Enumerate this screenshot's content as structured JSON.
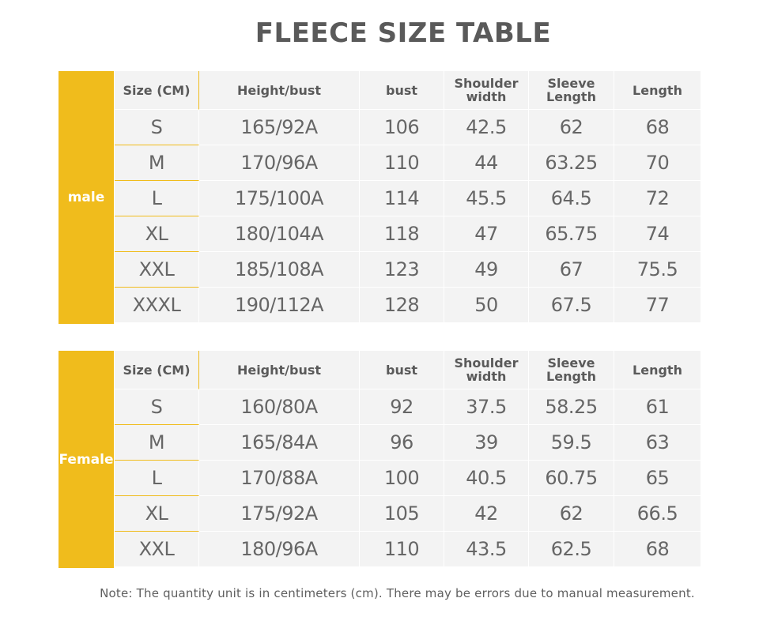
{
  "title": "FLEECE SIZE TABLE",
  "accent_color": "#f0bc1c",
  "male": {
    "label": "male",
    "headers": [
      "Size (CM)",
      "Height/bust",
      "bust",
      "Shoulder width",
      "Sleeve Length",
      "Length"
    ],
    "rows": [
      [
        "S",
        "165/92A",
        "106",
        "42.5",
        "62",
        "68"
      ],
      [
        "M",
        "170/96A",
        "110",
        "44",
        "63.25",
        "70"
      ],
      [
        "L",
        "175/100A",
        "114",
        "45.5",
        "64.5",
        "72"
      ],
      [
        "XL",
        "180/104A",
        "118",
        "47",
        "65.75",
        "74"
      ],
      [
        "XXL",
        "185/108A",
        "123",
        "49",
        "67",
        "75.5"
      ],
      [
        "XXXL",
        "190/112A",
        "128",
        "50",
        "67.5",
        "77"
      ]
    ]
  },
  "female": {
    "label": "Female",
    "headers": [
      "Size (CM)",
      "Height/bust",
      "bust",
      "Shoulder width",
      "Sleeve Length",
      "Length"
    ],
    "rows": [
      [
        "S",
        "160/80A",
        "92",
        "37.5",
        "58.25",
        "61"
      ],
      [
        "M",
        "165/84A",
        "96",
        "39",
        "59.5",
        "63"
      ],
      [
        "L",
        "170/88A",
        "100",
        "40.5",
        "60.75",
        "65"
      ],
      [
        "XL",
        "175/92A",
        "105",
        "42",
        "62",
        "66.5"
      ],
      [
        "XXL",
        "180/96A",
        "110",
        "43.5",
        "62.5",
        "68"
      ]
    ]
  },
  "note": "Note: The quantity unit is in centimeters (cm). There may be errors due to manual measurement."
}
